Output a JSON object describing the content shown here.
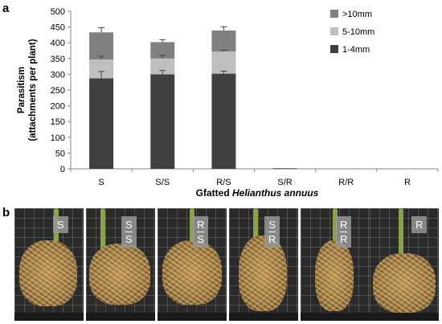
{
  "panel_a_label": "a",
  "panel_b_label": "b",
  "chart_data": {
    "type": "bar",
    "stacked": true,
    "categories": [
      "S",
      "S/S",
      "R/S",
      "S/R",
      "R/R",
      "R"
    ],
    "series": [
      {
        "name": "1-4mm",
        "color": "#404040",
        "values": [
          287,
          300,
          302,
          0,
          0,
          0
        ]
      },
      {
        "name": "5-10mm",
        "color": "#bfbfbf",
        "values": [
          60,
          50,
          70,
          0,
          0,
          0
        ]
      },
      {
        "name": ">10mm",
        "color": "#808080",
        "values": [
          86,
          52,
          67,
          2,
          0,
          0
        ]
      }
    ],
    "error_bars": {
      "1-4mm": [
        22,
        12,
        8,
        0,
        0,
        0
      ],
      "5-10mm": [
        10,
        10,
        5,
        0,
        0,
        0
      ],
      ">10mm": [
        15,
        8,
        12,
        0,
        0,
        0
      ]
    },
    "legend_order": [
      ">10mm",
      "5-10mm",
      "1-4mm"
    ],
    "legend_position": "top-right",
    "ylabel_line1": "Parasitism",
    "ylabel_line2": "(attachments per plant)",
    "xlabel_prefix": "Gfatted ",
    "xlabel_italic": "Helianthus annuus",
    "ylim": [
      0,
      500
    ],
    "yticks": [
      0,
      50,
      100,
      150,
      200,
      250,
      300,
      350,
      400,
      450,
      500
    ],
    "grid": false
  },
  "photos": [
    {
      "top": "S",
      "bottom": ""
    },
    {
      "top": "S",
      "bottom": "S"
    },
    {
      "top": "R",
      "bottom": "S"
    },
    {
      "top": "S",
      "bottom": "R"
    },
    {
      "top": "R",
      "bottom": "R"
    },
    {
      "top": "R",
      "bottom": ""
    }
  ]
}
